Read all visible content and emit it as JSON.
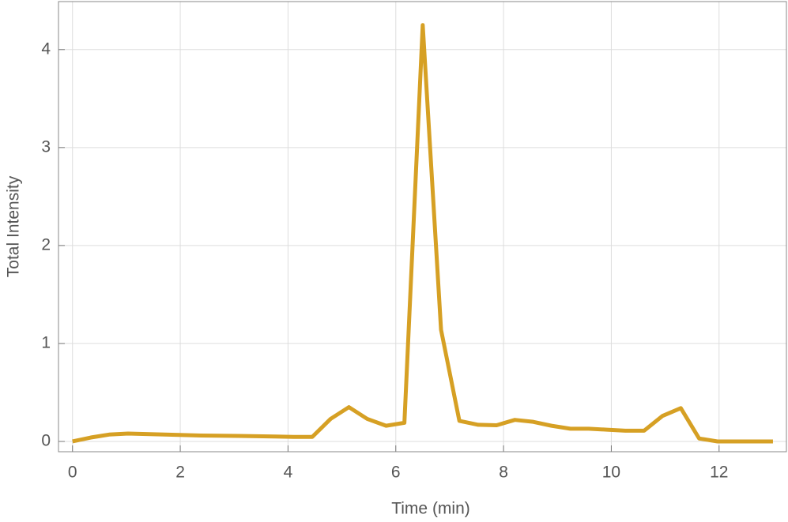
{
  "chart_data": {
    "type": "line",
    "x_label": "Time (min)",
    "y_label": "Total Intensity",
    "x": [
      0,
      0.34,
      0.68,
      1.03,
      1.37,
      1.71,
      2.05,
      2.39,
      2.74,
      3.08,
      3.42,
      3.76,
      4.11,
      4.45,
      4.79,
      5.13,
      5.47,
      5.82,
      6.16,
      6.5,
      6.84,
      7.18,
      7.53,
      7.87,
      8.21,
      8.55,
      8.89,
      9.24,
      9.58,
      9.92,
      10.26,
      10.61,
      10.95,
      11.29,
      11.63,
      11.97,
      12.32,
      12.66,
      13.0
    ],
    "series": [
      {
        "name": "Total Intensity",
        "color": "#d6a024",
        "values": [
          0,
          0.04,
          0.07,
          0.08,
          0.075,
          0.07,
          0.065,
          0.06,
          0.058,
          0.056,
          0.053,
          0.05,
          0.046,
          0.046,
          0.23,
          0.35,
          0.23,
          0.16,
          0.19,
          4.25,
          1.14,
          0.21,
          0.17,
          0.165,
          0.22,
          0.2,
          0.16,
          0.13,
          0.13,
          0.12,
          0.11,
          0.11,
          0.26,
          0.34,
          0.03,
          0,
          0,
          0,
          0
        ]
      }
    ],
    "xlim": [
      -0.26,
      13.25
    ],
    "ylim": [
      -0.105,
      4.49
    ],
    "xticks": [
      0,
      2,
      4,
      6,
      8,
      10,
      12
    ],
    "yticks": [
      0,
      1,
      2,
      3,
      4
    ],
    "grid": true
  }
}
